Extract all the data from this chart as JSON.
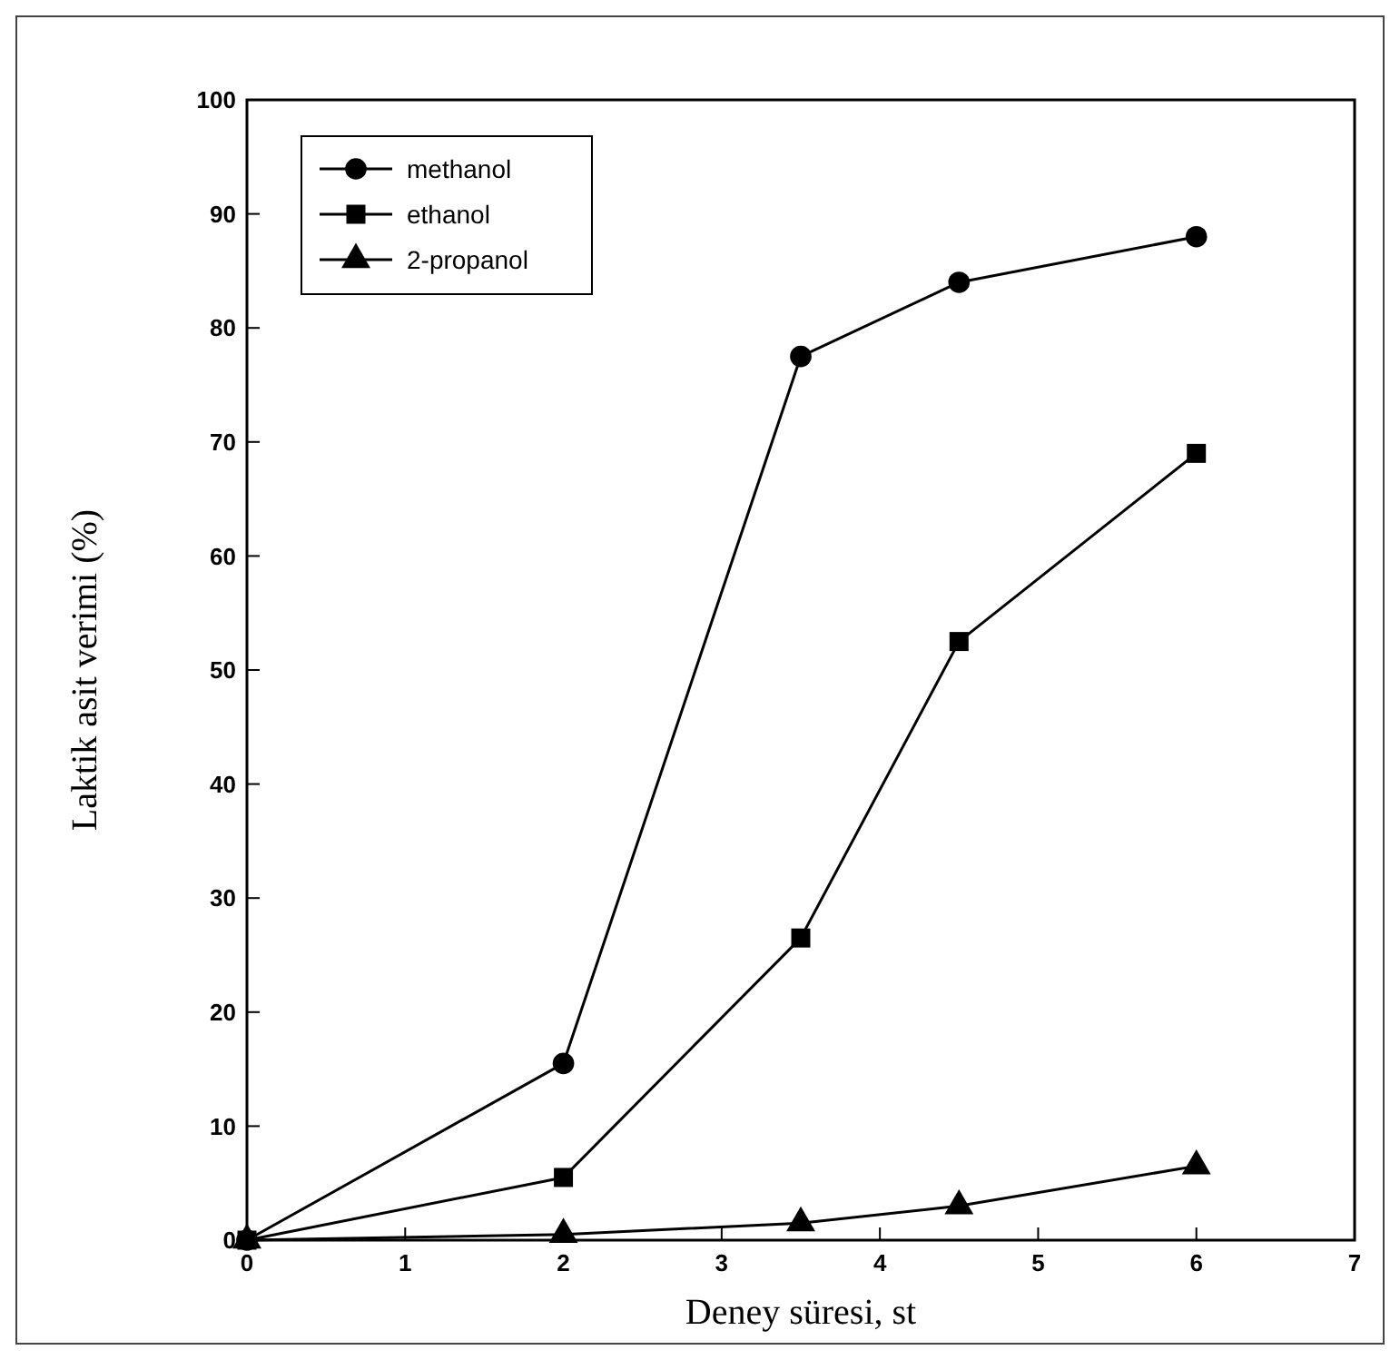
{
  "chart_data": {
    "type": "line",
    "xlabel": "Deney süresi, st",
    "ylabel": "Laktik asit verimi (%)",
    "xlim": [
      0,
      7
    ],
    "xticks": [
      0,
      1,
      2,
      3,
      4,
      5,
      6,
      7
    ],
    "ylim": [
      0,
      100
    ],
    "yticks": [
      0,
      10,
      20,
      30,
      40,
      50,
      60,
      70,
      80,
      90,
      100
    ],
    "grid": false,
    "legend": "top left",
    "line_style": "solid",
    "series": [
      {
        "name": "methanol",
        "color": "#000000",
        "marker": "circle",
        "x": [
          0,
          2,
          3.5,
          4.5,
          6
        ],
        "values": [
          0,
          15.5,
          77.5,
          84,
          88
        ]
      },
      {
        "name": "ethanol",
        "color": "#000000",
        "marker": "square",
        "x": [
          0,
          2,
          3.5,
          4.5,
          6
        ],
        "values": [
          0,
          5.5,
          26.5,
          52.5,
          69
        ]
      },
      {
        "name": "2-propanol",
        "color": "#000000",
        "marker": "triangle",
        "x": [
          0,
          2,
          3.5,
          4.5,
          6
        ],
        "values": [
          0,
          0.5,
          1.5,
          3,
          6.5
        ]
      }
    ]
  }
}
